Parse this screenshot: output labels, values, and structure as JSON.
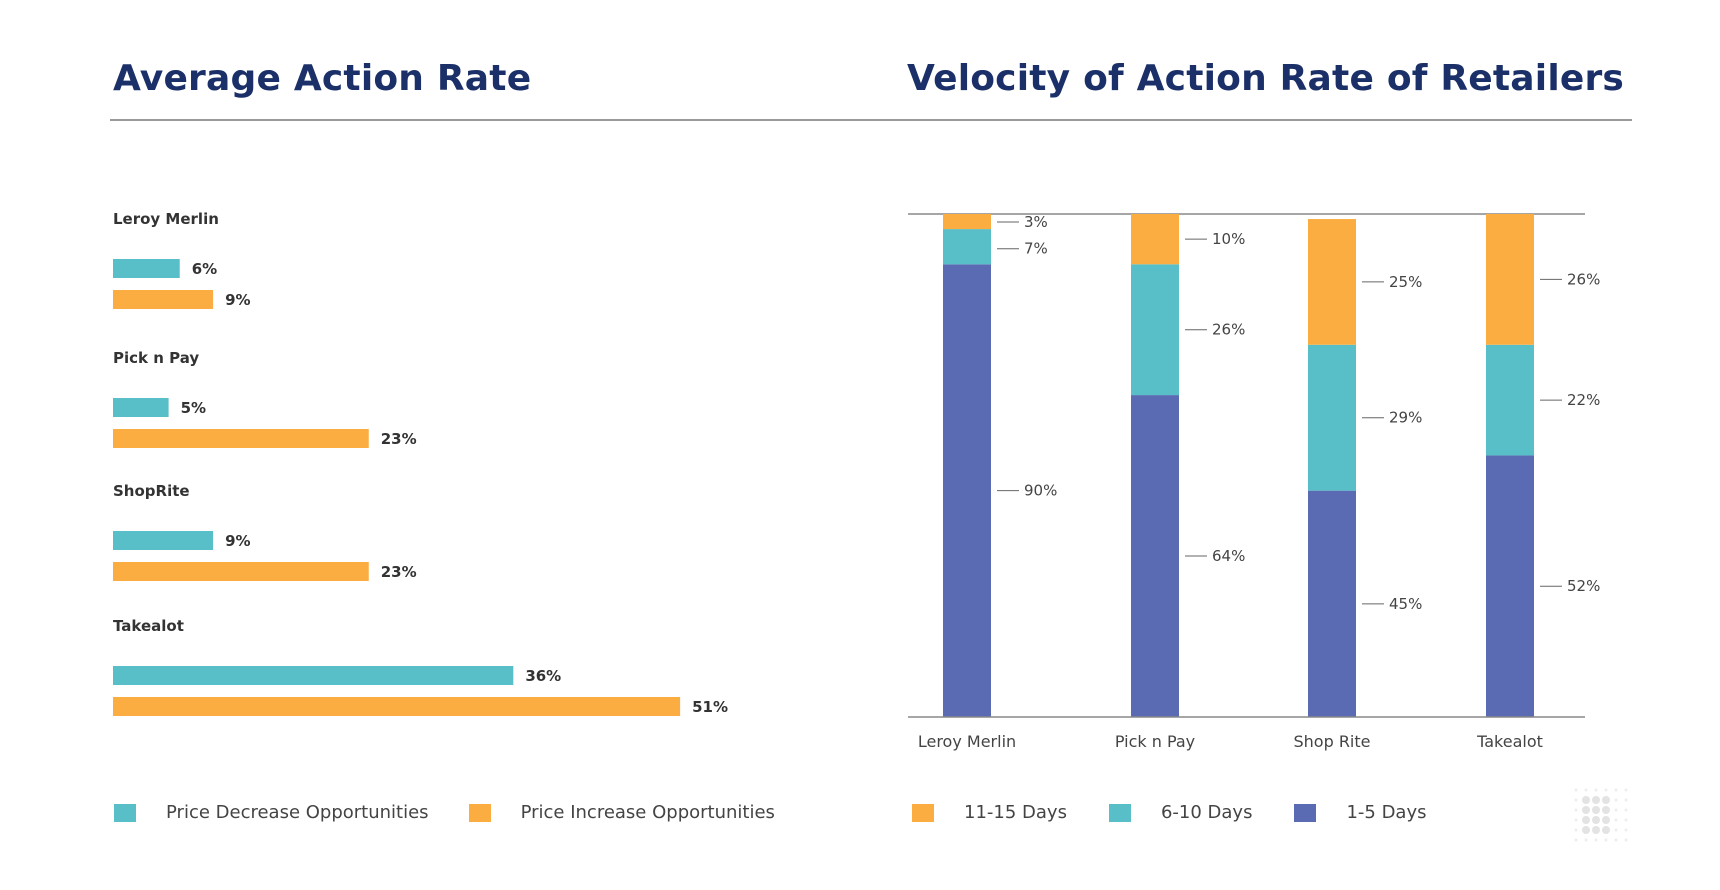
{
  "colors": {
    "title": "#1b3068",
    "decrease": "#58bfc9",
    "increase": "#fbad42",
    "days_1_5": "#5b6bb3",
    "days_6_10": "#58bfc9",
    "days_11_15": "#fbad42"
  },
  "left_title": "Average Action Rate",
  "right_title": "Velocity of Action Rate of Retailers",
  "left_legend": [
    {
      "label": "Price Decrease Opportunities",
      "color": "#58bfc9"
    },
    {
      "label": "Price Increase Opportunities",
      "color": "#fbad42"
    }
  ],
  "right_legend": [
    {
      "label": "11-15 Days",
      "color": "#fbad42"
    },
    {
      "label": "6-10 Days",
      "color": "#58bfc9"
    },
    {
      "label": "1-5 Days",
      "color": "#5b6bb3"
    }
  ],
  "chart_data": [
    {
      "type": "bar",
      "orientation": "horizontal",
      "title": "Average Action Rate",
      "categories": [
        "Leroy Merlin",
        "Pick n Pay",
        "ShopRite",
        "Takealot"
      ],
      "series": [
        {
          "name": "Price Decrease Opportunities",
          "values": [
            6,
            5,
            9,
            36
          ],
          "labels": [
            "6%",
            "5%",
            "9%",
            "36%"
          ]
        },
        {
          "name": "Price Increase Opportunities",
          "values": [
            9,
            23,
            23,
            51
          ],
          "labels": [
            "9%",
            "23%",
            "23%",
            "51%"
          ]
        }
      ],
      "xlim": [
        0,
        100
      ],
      "grid": false,
      "legend": "bottom"
    },
    {
      "type": "bar",
      "stacked": true,
      "title": "Velocity of Action Rate of Retailers",
      "categories": [
        "Leroy Merlin",
        "Pick n Pay",
        "Shop Rite",
        "Takealot"
      ],
      "series": [
        {
          "name": "1-5 Days",
          "values": [
            90,
            64,
            45,
            52
          ],
          "labels": [
            "90%",
            "64%",
            "45%",
            "52%"
          ]
        },
        {
          "name": "6-10 Days",
          "values": [
            7,
            26,
            29,
            22
          ],
          "labels": [
            "7%",
            "26%",
            "29%",
            "22%"
          ]
        },
        {
          "name": "11-15 Days",
          "values": [
            3,
            10,
            25,
            26
          ],
          "labels": [
            "3%",
            "10%",
            "25%",
            "26%"
          ]
        }
      ],
      "ylim": [
        0,
        100
      ],
      "grid": false,
      "legend": "bottom"
    }
  ]
}
